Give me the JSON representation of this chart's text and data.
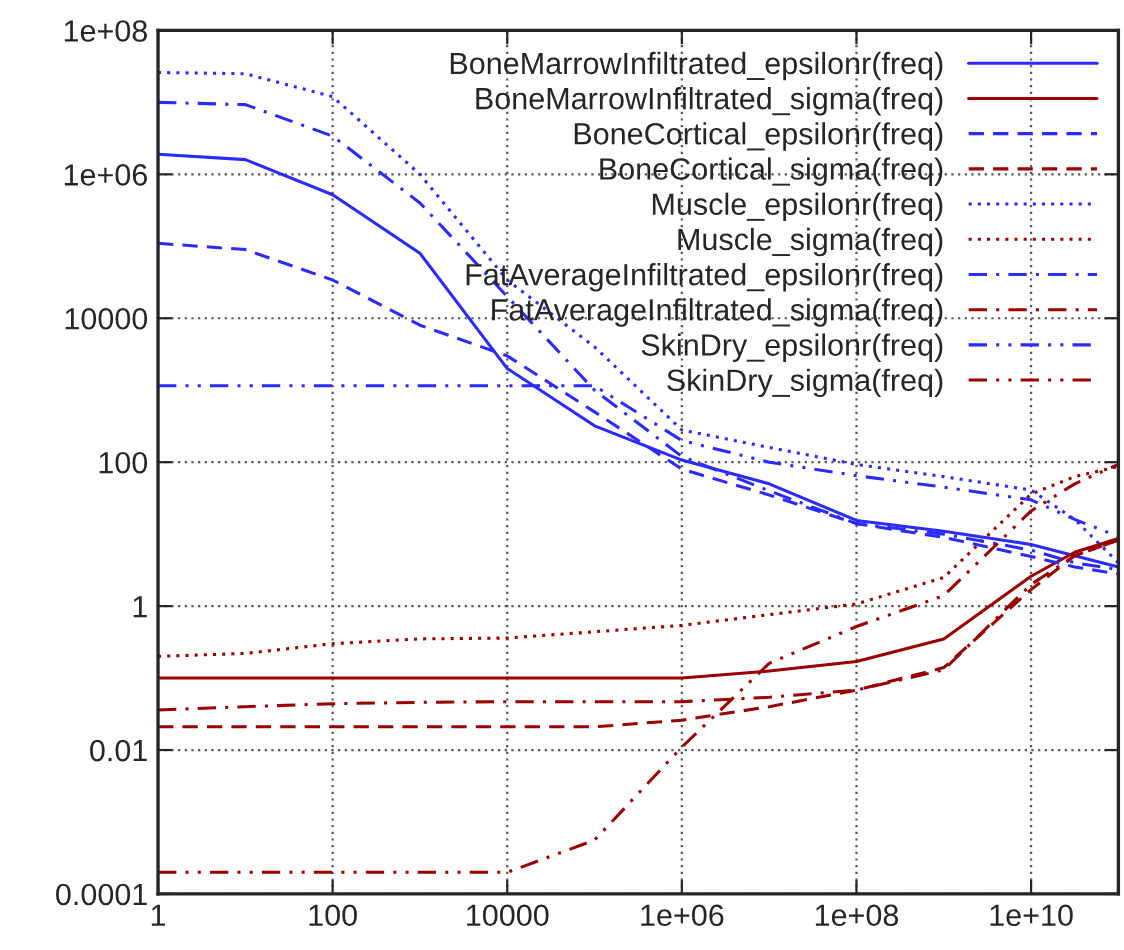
{
  "chart_data": {
    "type": "line",
    "x": [
      1,
      10,
      100,
      1000,
      10000,
      100000,
      1000000,
      10000000,
      100000000,
      1000000000,
      10000000000,
      31600000000,
      100000000000
    ],
    "series": [
      {
        "name": "BoneMarrowInfiltrated_epsilonr(freq)",
        "color": "#2b2bff",
        "line_style": "solid",
        "values": [
          1900000,
          1600000,
          520000,
          80000,
          2000,
          320,
          107,
          50,
          15.5,
          11,
          7.2,
          5,
          3.5
        ]
      },
      {
        "name": "BoneMarrowInfiltrated_sigma(freq)",
        "color": "#990000",
        "line_style": "solid",
        "values": [
          0.1,
          0.1,
          0.1,
          0.1,
          0.1,
          0.1,
          0.1,
          0.125,
          0.17,
          0.35,
          2.6,
          5.6,
          8.7
        ]
      },
      {
        "name": "BoneCortical_epsilonr(freq)",
        "color": "#2b2bff",
        "line_style": "dashed",
        "values": [
          110000,
          90000,
          34000,
          8000,
          3000,
          500,
          80,
          35,
          14,
          9,
          4.9,
          3.5,
          2.8
        ]
      },
      {
        "name": "BoneCortical_sigma(freq)",
        "color": "#990000",
        "line_style": "dashed",
        "values": [
          0.021,
          0.021,
          0.021,
          0.021,
          0.021,
          0.021,
          0.026,
          0.04,
          0.068,
          0.14,
          1.7,
          5,
          8.3
        ]
      },
      {
        "name": "Muscle_epsilonr(freq)",
        "color": "#2b2bff",
        "line_style": "dotted",
        "values": [
          26000000,
          25000000,
          12000000,
          1000000,
          34000,
          4000,
          280,
          160,
          93,
          63,
          41,
          16,
          4
        ]
      },
      {
        "name": "Muscle_sigma(freq)",
        "color": "#990000",
        "line_style": "dotted",
        "values": [
          0.2,
          0.22,
          0.3,
          0.35,
          0.36,
          0.44,
          0.54,
          0.76,
          1.07,
          2.5,
          36,
          63,
          87
        ]
      },
      {
        "name": "FatAverageInfiltrated_epsilonr(freq)",
        "color": "#2b2bff",
        "line_style": "dashdot",
        "values": [
          10000000,
          9300000,
          3400000,
          400000,
          20000,
          1000,
          120,
          40,
          14,
          10,
          6,
          4,
          3.2
        ]
      },
      {
        "name": "FatAverageInfiltrated_sigma(freq)",
        "color": "#990000",
        "line_style": "dashdot",
        "values": [
          0.036,
          0.04,
          0.044,
          0.046,
          0.047,
          0.047,
          0.047,
          0.054,
          0.068,
          0.13,
          2,
          5,
          8.3
        ]
      },
      {
        "name": "SkinDry_epsilonr(freq)",
        "color": "#2b2bff",
        "line_style": "dashdotdot",
        "values": [
          1150,
          1150,
          1150,
          1150,
          1150,
          1150,
          200,
          100,
          65,
          45,
          30,
          16,
          9.3
        ]
      },
      {
        "name": "SkinDry_sigma(freq)",
        "color": "#990000",
        "line_style": "dashdotdot",
        "values": [
          0.0002,
          0.0002,
          0.0002,
          0.0002,
          0.0002,
          0.00056,
          0.011,
          0.16,
          0.52,
          1.4,
          21,
          50,
          93
        ]
      }
    ],
    "log": "xy",
    "xlim": [
      1,
      100000000000
    ],
    "xticks": [
      1,
      100,
      10000,
      {
        "value": 1000000,
        "label": "1e+06"
      },
      {
        "value": 100000000,
        "label": "1e+08"
      },
      {
        "value": 10000000000,
        "label": "1e+10"
      }
    ],
    "ylim": [
      0.0001,
      100000000
    ],
    "yticks": [
      0.0001,
      0.01,
      1,
      100,
      10000,
      {
        "value": 1000000,
        "label": "1e+06"
      },
      {
        "value": 100000000,
        "label": "1e+08"
      }
    ],
    "grid": true,
    "legend": "top right"
  }
}
